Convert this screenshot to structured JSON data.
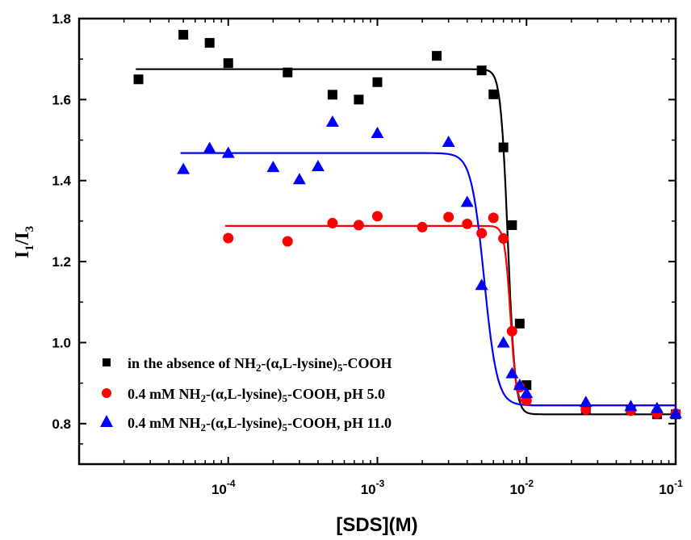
{
  "chart_data": {
    "type": "scatter",
    "xscale": "log",
    "xlim": [
      1e-05,
      0.1
    ],
    "ylim": [
      0.7,
      1.8
    ],
    "xlabel": "[SDS](M)",
    "ylabel": {
      "main": "I",
      "sub1": "1",
      "slash": "/I",
      "sub2": "3"
    },
    "x_ticks": [
      {
        "value": 0.0001,
        "base": "10",
        "exp": "-4"
      },
      {
        "value": 0.001,
        "base": "10",
        "exp": "-3"
      },
      {
        "value": 0.01,
        "base": "10",
        "exp": "-2"
      },
      {
        "value": 0.1,
        "base": "10",
        "exp": "-1"
      }
    ],
    "y_ticks": [
      {
        "value": 0.8,
        "label": "0.8"
      },
      {
        "value": 1.0,
        "label": "1.0"
      },
      {
        "value": 1.2,
        "label": "1.2"
      },
      {
        "value": 1.4,
        "label": "1.4"
      },
      {
        "value": 1.6,
        "label": "1.6"
      },
      {
        "value": 1.8,
        "label": "1.8"
      }
    ],
    "grid": false,
    "legend_position": "bottom-left",
    "series": [
      {
        "name": {
          "pre": "in the absence of NH",
          "sub1": "2",
          "mid": "-(α,L-lysine)",
          "sub2": "5",
          "post": "-COOH"
        },
        "marker": "square",
        "color": "#000000",
        "points": [
          [
            2.5e-05,
            1.65
          ],
          [
            5e-05,
            1.76
          ],
          [
            7.5e-05,
            1.74
          ],
          [
            0.0001,
            1.69
          ],
          [
            0.00025,
            1.667
          ],
          [
            0.0005,
            1.612
          ],
          [
            0.00075,
            1.6
          ],
          [
            0.001,
            1.643
          ],
          [
            0.0025,
            1.708
          ],
          [
            0.005,
            1.672
          ],
          [
            0.006,
            1.613
          ],
          [
            0.007,
            1.482
          ],
          [
            0.008,
            1.29
          ],
          [
            0.009,
            1.047
          ],
          [
            0.01,
            0.895
          ],
          [
            0.025,
            0.835
          ],
          [
            0.05,
            0.833
          ],
          [
            0.075,
            0.823
          ],
          [
            0.1,
            0.823
          ]
        ],
        "fit": {
          "top": 1.675,
          "bottom": 0.823,
          "x0": 0.0075,
          "p": 18
        }
      },
      {
        "name": {
          "pre": "0.4 mM NH",
          "sub1": "2",
          "mid": "-(α,L-lysine)",
          "sub2": "5",
          "post": "-COOH, pH 5.0"
        },
        "marker": "circle",
        "color": "#ff0000",
        "points": [
          [
            0.0001,
            1.258
          ],
          [
            0.00025,
            1.25
          ],
          [
            0.0005,
            1.295
          ],
          [
            0.00075,
            1.29
          ],
          [
            0.001,
            1.312
          ],
          [
            0.002,
            1.285
          ],
          [
            0.003,
            1.31
          ],
          [
            0.004,
            1.293
          ],
          [
            0.005,
            1.27
          ],
          [
            0.006,
            1.308
          ],
          [
            0.007,
            1.257
          ],
          [
            0.008,
            1.028
          ],
          [
            0.009,
            0.89
          ],
          [
            0.01,
            0.857
          ],
          [
            0.025,
            0.835
          ],
          [
            0.05,
            0.832
          ],
          [
            0.075,
            0.825
          ],
          [
            0.1,
            0.825
          ]
        ],
        "fit": {
          "top": 1.288,
          "bottom": 0.845,
          "x0": 0.0078,
          "p": 22
        }
      },
      {
        "name": {
          "pre": "0.4 mM NH",
          "sub1": "2",
          "mid": "-(α,L-lysine)",
          "sub2": "5",
          "post": "-COOH, pH 11.0"
        },
        "marker": "triangle",
        "color": "#0000ff",
        "points": [
          [
            5e-05,
            1.428
          ],
          [
            7.5e-05,
            1.48
          ],
          [
            0.0001,
            1.468
          ],
          [
            0.0002,
            1.433
          ],
          [
            0.0003,
            1.403
          ],
          [
            0.0004,
            1.435
          ],
          [
            0.0005,
            1.545
          ],
          [
            0.001,
            1.517
          ],
          [
            0.003,
            1.495
          ],
          [
            0.004,
            1.347
          ],
          [
            0.005,
            1.142
          ],
          [
            0.007,
            1.0
          ],
          [
            0.008,
            0.924
          ],
          [
            0.009,
            0.895
          ],
          [
            0.01,
            0.875
          ],
          [
            0.025,
            0.853
          ],
          [
            0.05,
            0.843
          ],
          [
            0.075,
            0.838
          ],
          [
            0.1,
            0.825
          ]
        ],
        "fit": {
          "top": 1.468,
          "bottom": 0.845,
          "x0": 0.0052,
          "p": 10
        }
      }
    ]
  }
}
